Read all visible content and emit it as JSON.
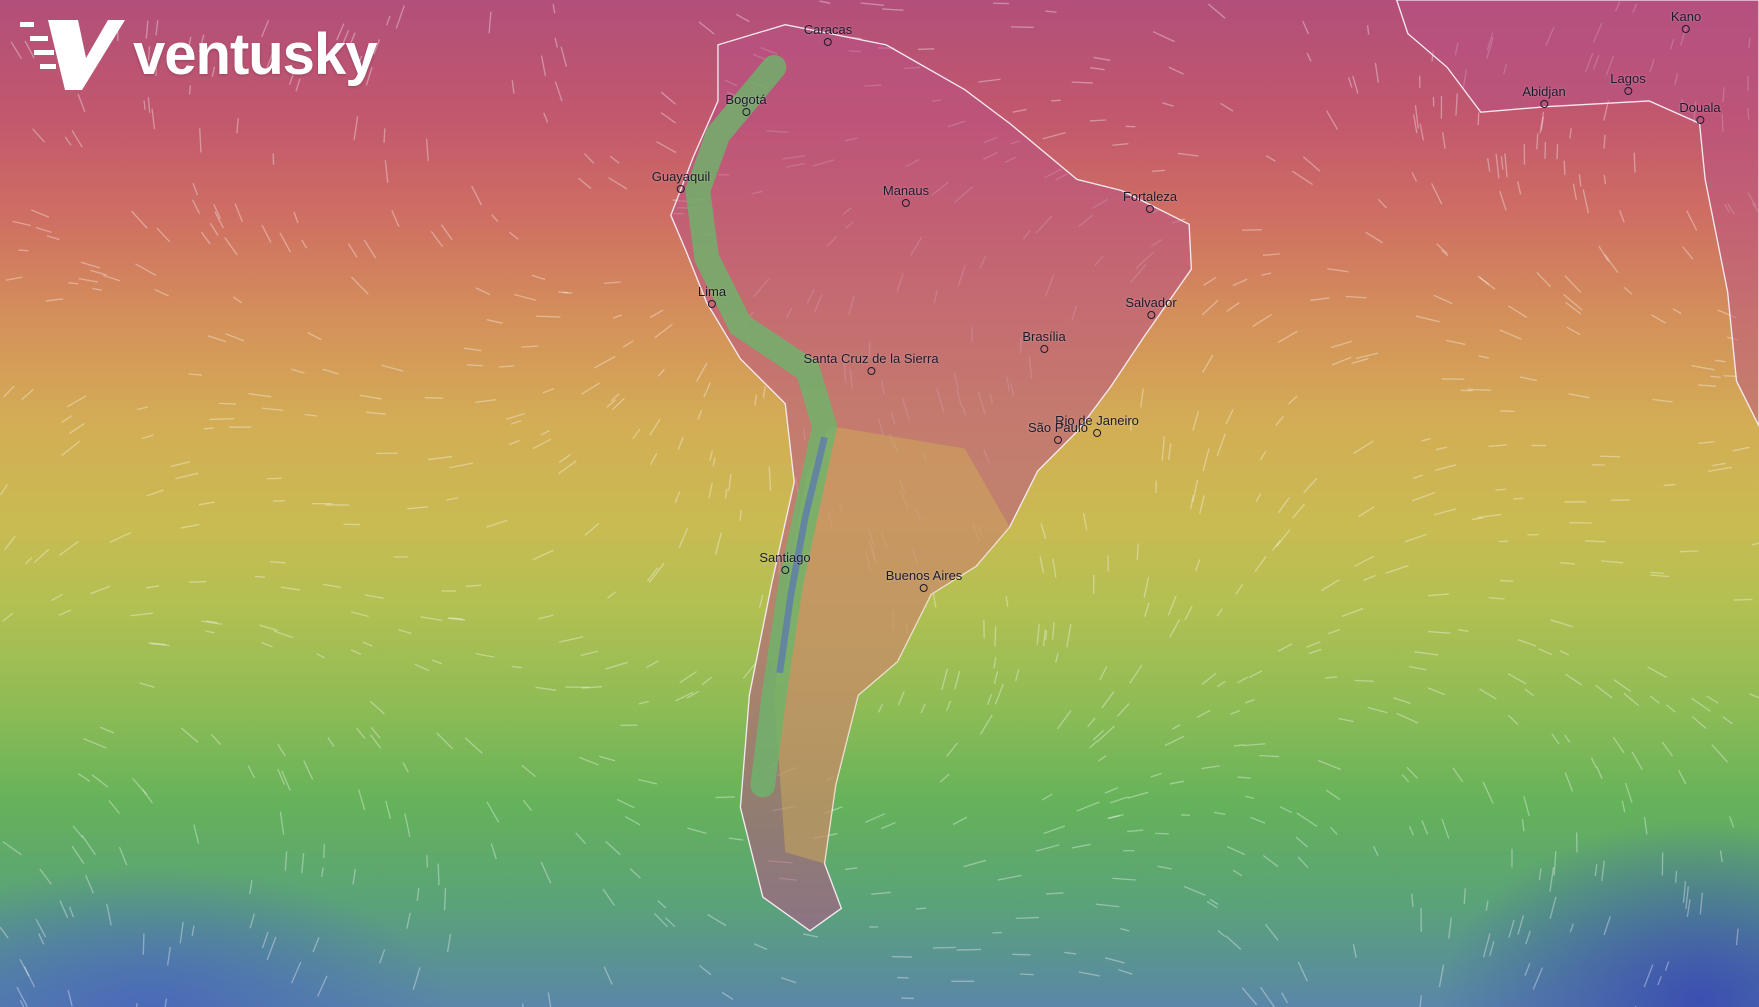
{
  "brand": {
    "name": "ventusky",
    "logo_icon": "ventusky-v-logo"
  },
  "colors": {
    "hot": "#b24f7a",
    "warm": "#d4915a",
    "mild": "#c9bb52",
    "cool": "#64b25a",
    "cold": "#3b4fb0"
  },
  "cities": [
    {
      "name": "Caracas"
    },
    {
      "name": "Bogotá"
    },
    {
      "name": "Guayaquil"
    },
    {
      "name": "Manaus"
    },
    {
      "name": "Fortaleza"
    },
    {
      "name": "Lima"
    },
    {
      "name": "Salvador"
    },
    {
      "name": "Brasília"
    },
    {
      "name": "Santa Cruz de la Sierra"
    },
    {
      "name": "Rio de Janeiro"
    },
    {
      "name": "São Paulo"
    },
    {
      "name": "Santiago"
    },
    {
      "name": "Buenos Aires"
    },
    {
      "name": "Kano"
    },
    {
      "name": "Abidjan"
    },
    {
      "name": "Lagos"
    },
    {
      "name": "Douala"
    }
  ]
}
